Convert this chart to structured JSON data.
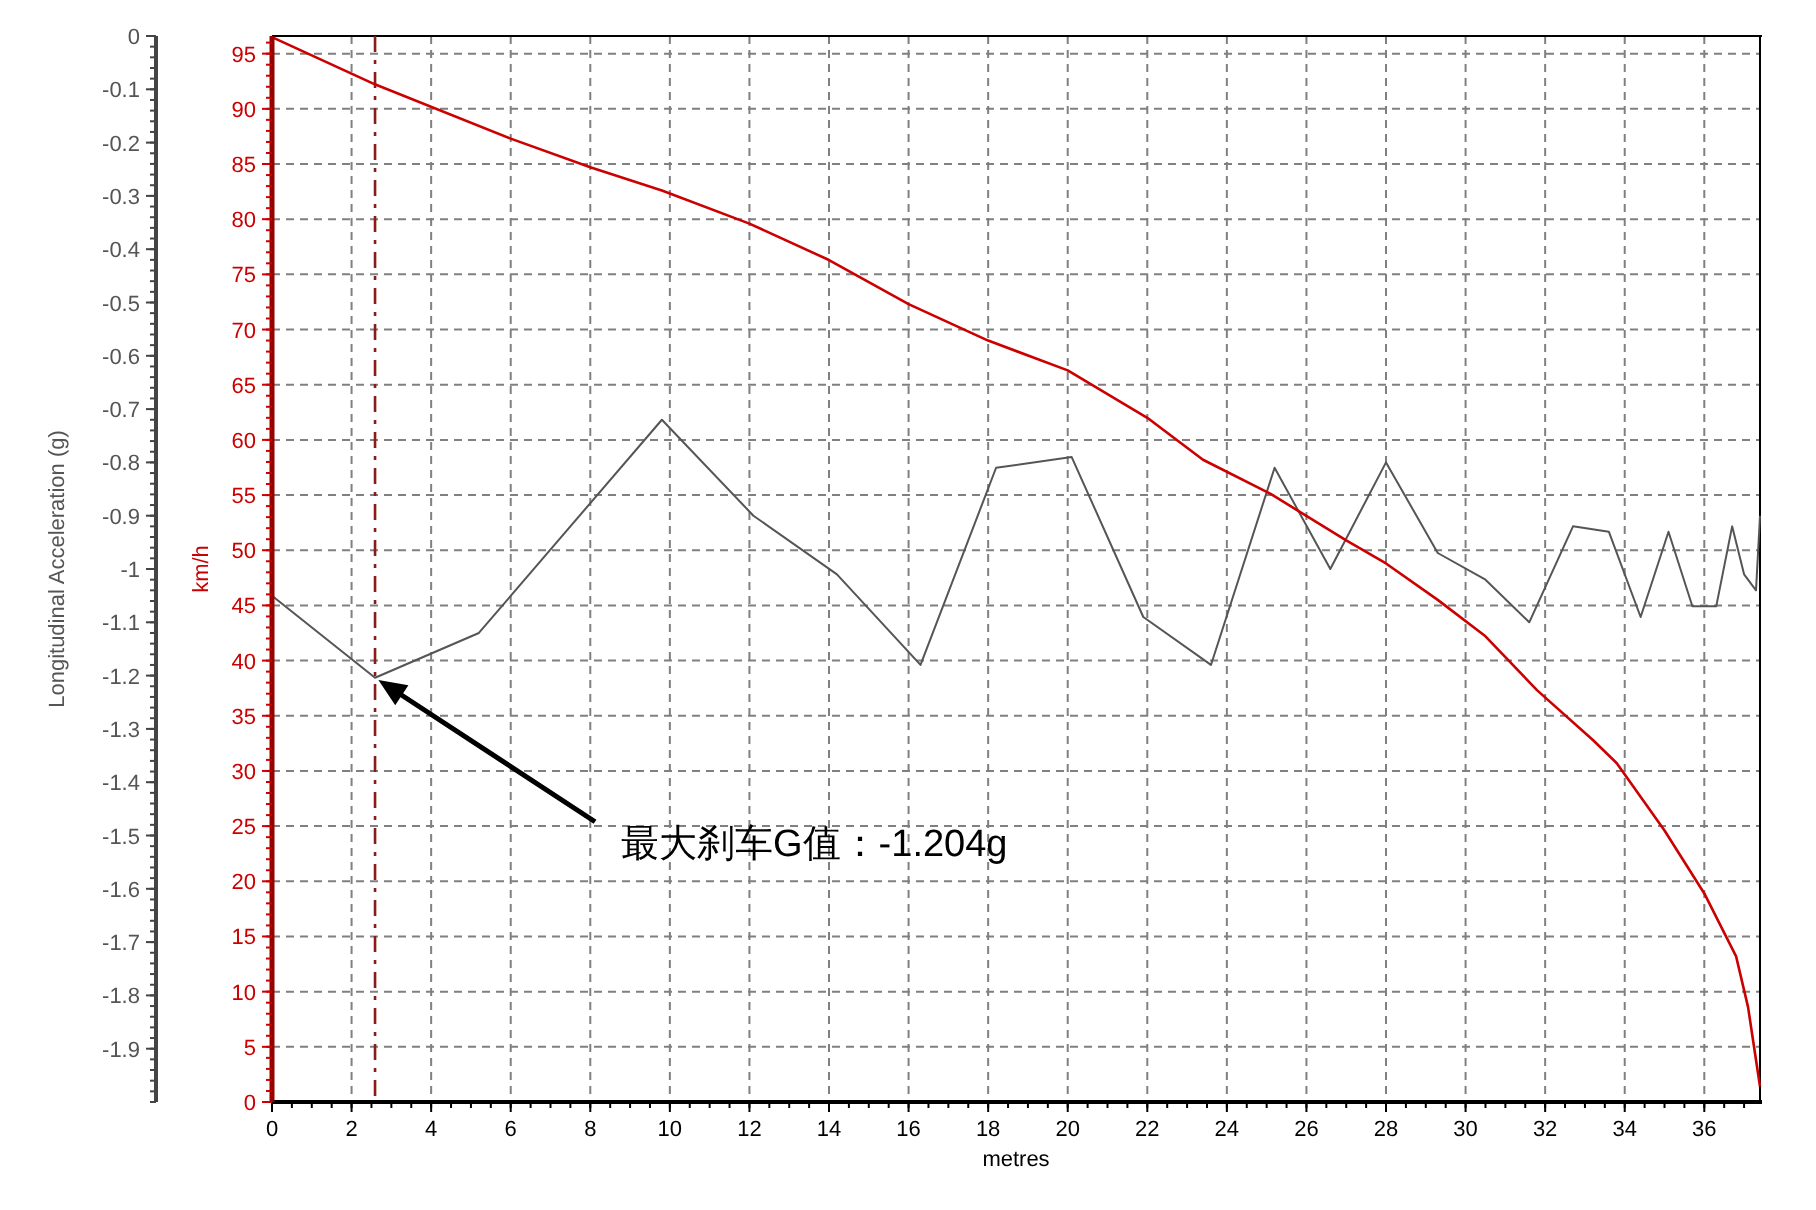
{
  "chart_data": {
    "type": "line",
    "xlabel": "metres",
    "ylabel": "Longitudinal Acceleration (g)",
    "y2label": "km/h",
    "xlim": [
      0,
      37.4
    ],
    "xticks": [
      0,
      2,
      4,
      6,
      8,
      10,
      12,
      14,
      16,
      18,
      20,
      22,
      24,
      26,
      28,
      30,
      32,
      34,
      36
    ],
    "ylim": [
      -2,
      0
    ],
    "yticks": [
      0,
      -0.1,
      -0.2,
      -0.3,
      -0.4,
      -0.5,
      -0.6,
      -0.7,
      -0.8,
      -0.9,
      -1,
      -1.1,
      -1.2,
      -1.3,
      -1.4,
      -1.5,
      -1.6,
      -1.7,
      -1.8,
      -1.9
    ],
    "y2lim": [
      0,
      96.6
    ],
    "y2ticks": [
      0,
      5,
      10,
      15,
      20,
      25,
      30,
      35,
      40,
      45,
      50,
      55,
      60,
      65,
      70,
      75,
      80,
      85,
      90,
      95
    ],
    "grid": true,
    "marker": "none",
    "line_style": "solid",
    "series": [
      {
        "color": "#555555",
        "x": [
          0,
          2.59,
          5.2,
          9.8,
          12.1,
          14.2,
          16.3,
          18.2,
          20.1,
          21.9,
          23.6,
          25.2,
          26.6,
          28.0,
          29.3,
          30.5,
          31.6,
          32.7,
          33.6,
          34.4,
          35.1,
          35.7,
          36.3,
          36.7,
          37.0,
          37.3,
          37.4
        ],
        "values": [
          -1.05,
          -1.204,
          -1.12,
          -0.72,
          -0.9,
          -1.01,
          -1.18,
          -0.81,
          -0.79,
          -1.09,
          -1.18,
          -0.81,
          -1.0,
          -0.8,
          -0.97,
          -1.02,
          -1.1,
          -0.92,
          -0.93,
          -1.09,
          -0.93,
          -1.07,
          -1.07,
          -0.92,
          -1.01,
          -1.04,
          -0.9
        ]
      },
      {
        "color": "#cc0000",
        "axis": "y2",
        "x": [
          0,
          2.6,
          6.0,
          8.0,
          9.8,
          12.0,
          14.0,
          16.0,
          18.0,
          20.0,
          22.0,
          23.4,
          25.1,
          27.0,
          28.0,
          29.3,
          30.5,
          31.8,
          33.2,
          33.8,
          35.0,
          36.0,
          36.8,
          37.1,
          37.3,
          37.4
        ],
        "values": [
          96.5,
          92.2,
          87.3,
          84.7,
          82.6,
          79.6,
          76.3,
          72.3,
          69.0,
          66.3,
          62.0,
          58.2,
          55.1,
          50.9,
          48.8,
          45.5,
          42.2,
          37.3,
          32.8,
          30.7,
          24.6,
          18.9,
          13.2,
          8.6,
          3.8,
          1.4
        ]
      }
    ],
    "ref_lines": [
      {
        "axis": "x",
        "value": 2.59,
        "color": "#8b1a1a",
        "line_style": "dashdot"
      }
    ],
    "annotations": [
      "最大刹车G值：-1.204g"
    ]
  }
}
